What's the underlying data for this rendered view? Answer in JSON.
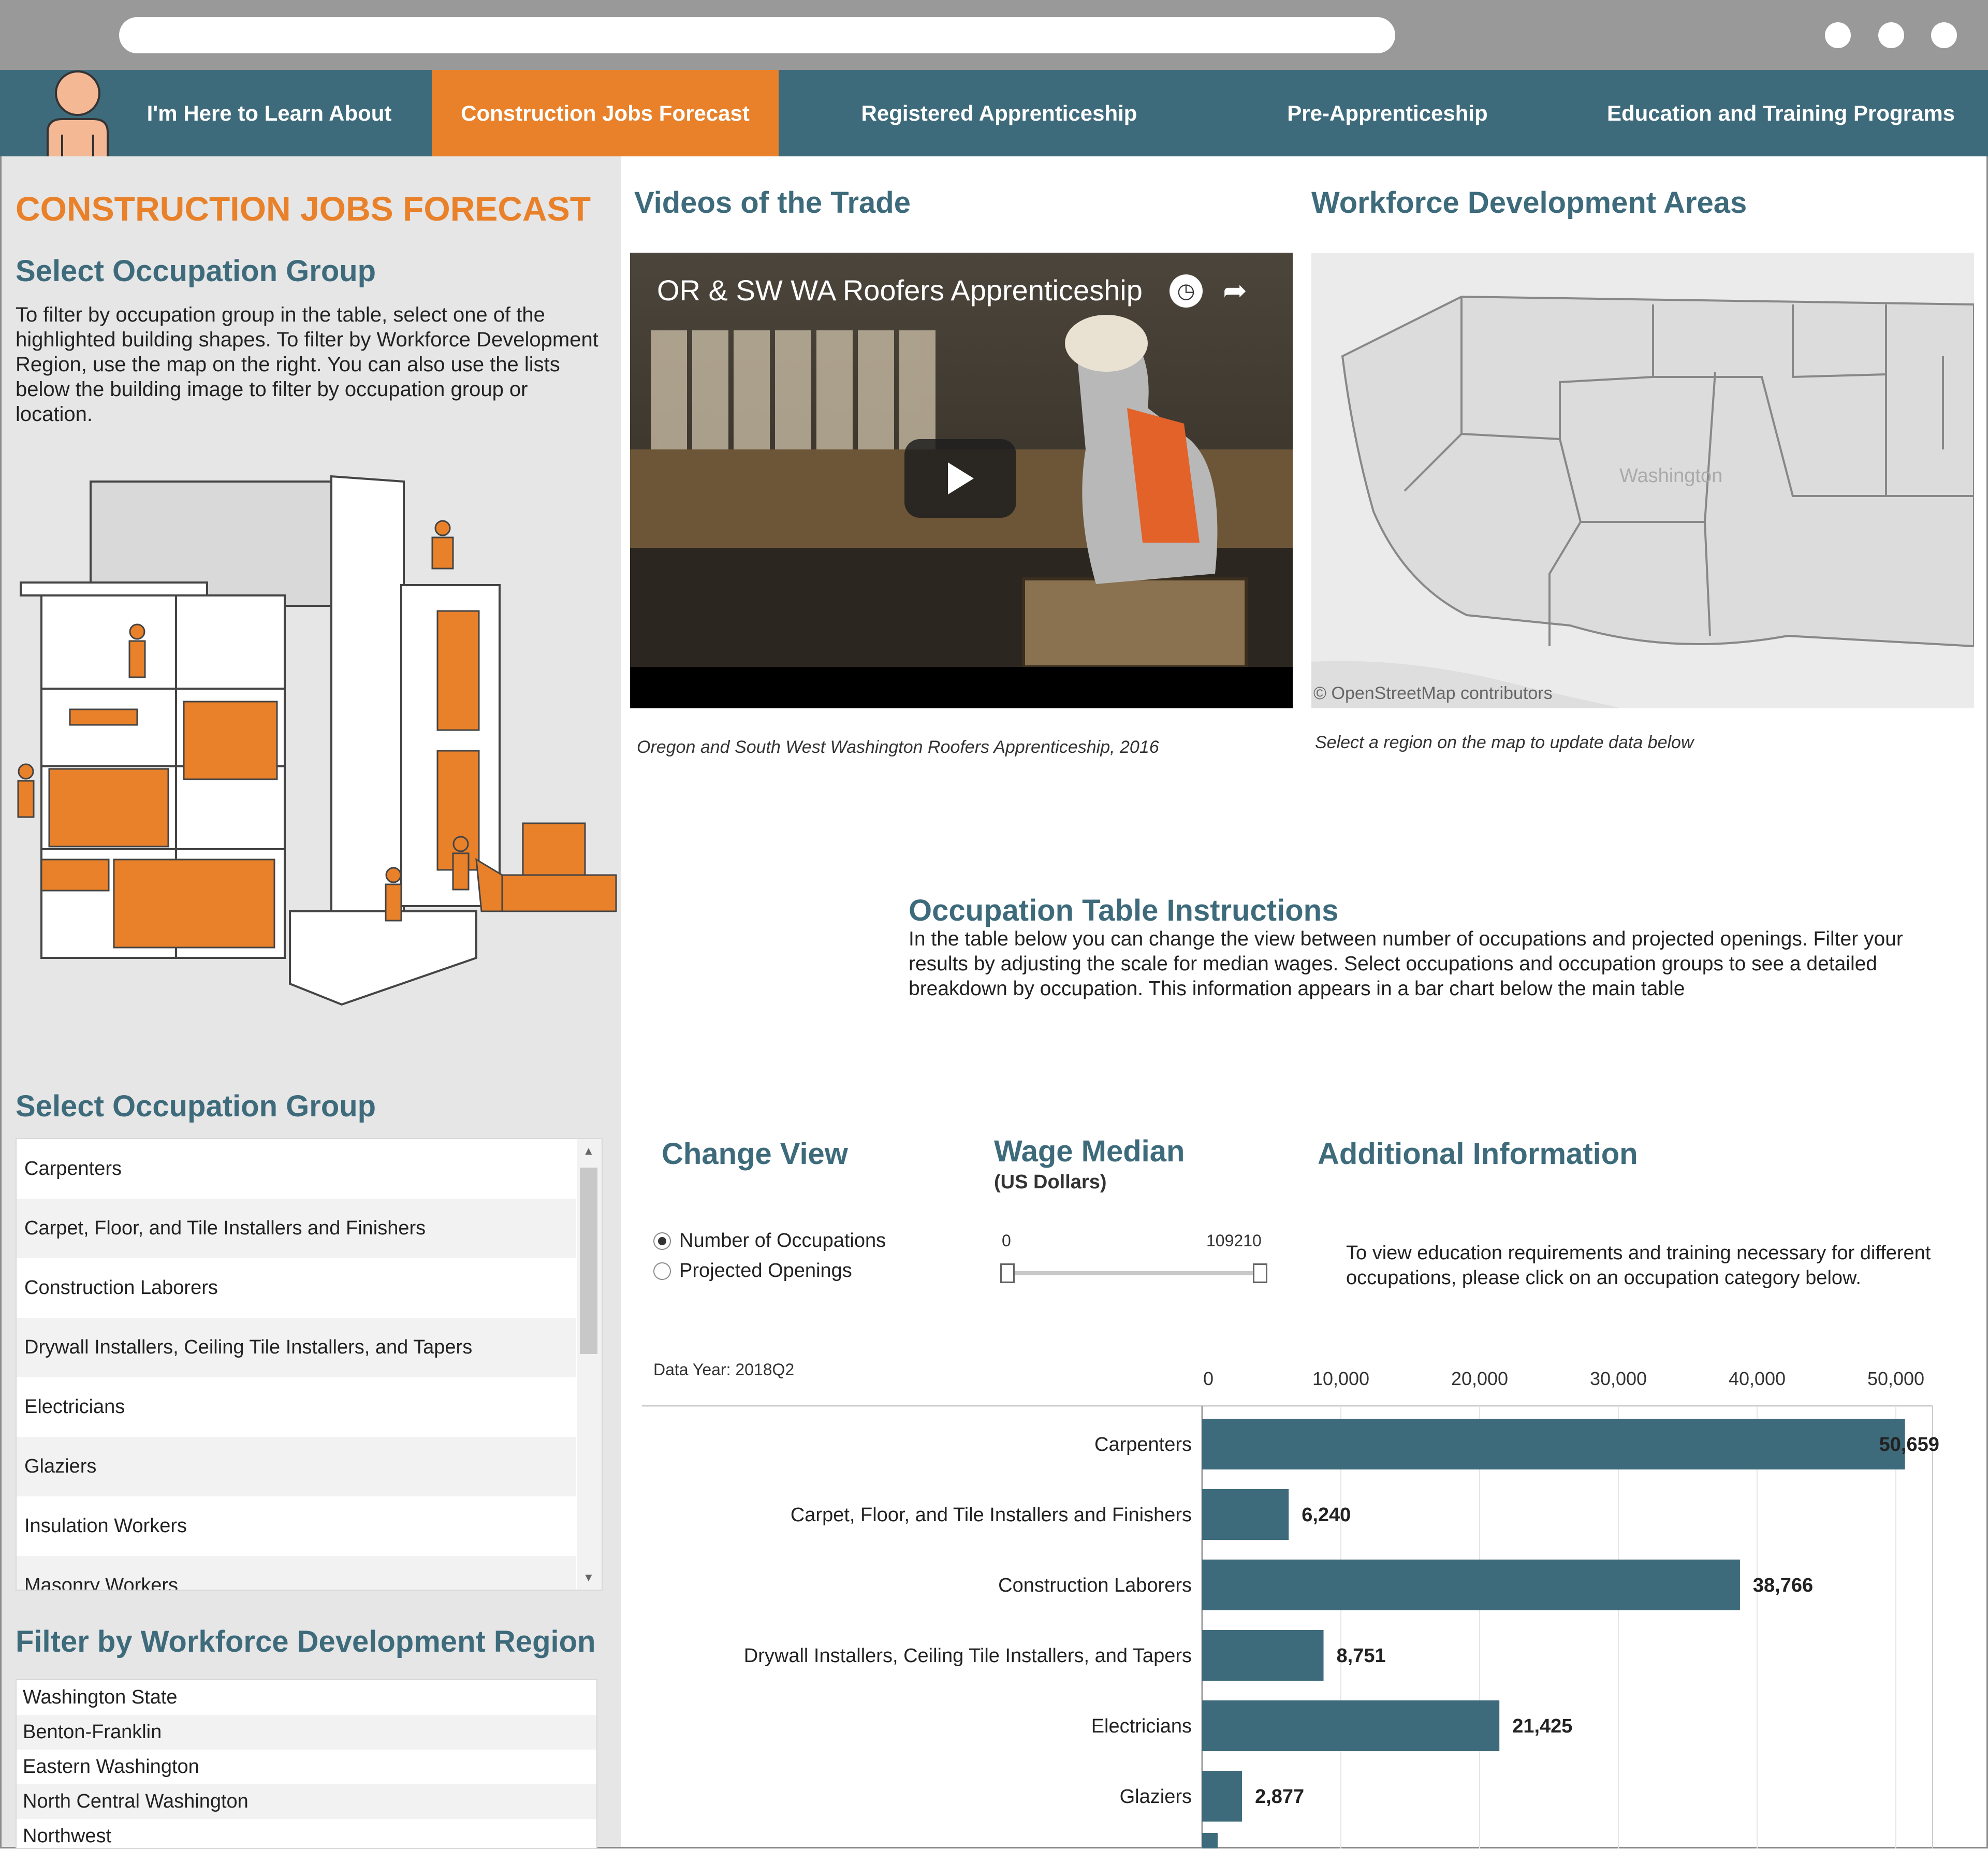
{
  "nav": {
    "items": [
      {
        "label": "I'm Here to Learn About",
        "active": false
      },
      {
        "label": "Construction Jobs Forecast",
        "active": true
      },
      {
        "label": "Registered Apprenticeship",
        "active": false
      },
      {
        "label": "Pre-Apprenticeship",
        "active": false
      },
      {
        "label": "Education and Training Programs",
        "active": false
      }
    ]
  },
  "left": {
    "title": "CONSTRUCTION JOBS FORECAST",
    "select_heading": "Select Occupation Group",
    "instructions": "To filter by occupation group in the table, select one of the highlighted building shapes. To filter by Workforce Development Region, use the map on the right. You can also use the lists below the building image to filter by occupation group or location.",
    "list_heading": "Select Occupation Group",
    "occupations": [
      "Carpenters",
      "Carpet, Floor, and Tile Installers and Finishers",
      "Construction Laborers",
      "Drywall Installers, Ceiling Tile Installers, and Tapers",
      "Electricians",
      "Glaziers",
      "Insulation Workers",
      "Masonry Workers"
    ],
    "region_heading": "Filter by Workforce Development Region",
    "regions": [
      "Washington State",
      "Benton-Franklin",
      "Eastern Washington",
      "North Central Washington",
      "Northwest"
    ]
  },
  "videos": {
    "heading": "Videos of the Trade",
    "video_title": "OR & SW WA Roofers Apprenticeship",
    "caption": "Oregon and South West Washington Roofers Apprenticeship, 2016"
  },
  "map": {
    "heading": "Workforce Development Areas",
    "state_label": "Washington",
    "attribution": "© OpenStreetMap contributors",
    "caption": "Select a region on the map to update data below"
  },
  "occ_table": {
    "heading": "Occupation Table Instructions",
    "text": "In the table below you can change the view between number of occupations and projected openings. Filter your results by adjusting the scale for median wages. Select occupations and occupation groups to see a detailed breakdown by occupation. This information appears in a bar chart below the main table"
  },
  "change_view": {
    "heading": "Change View",
    "options": [
      "Number of Occupations",
      "Projected Openings"
    ],
    "selected": "Number of Occupations"
  },
  "wage": {
    "heading": "Wage Median",
    "subheading": "(US Dollars)",
    "min": "0",
    "max": "109210"
  },
  "additional": {
    "heading": "Additional Information",
    "text": "To view education requirements and training necessary for different occupations, please click on an occupation category below."
  },
  "data_year": "Data Year: 2018Q2",
  "colors": {
    "teal": "#3e6b7b",
    "orange": "#e8812a",
    "bar": "#3e6b7b"
  },
  "chart_data": {
    "type": "bar",
    "orientation": "horizontal",
    "categories": [
      "Carpenters",
      "Carpet, Floor, and Tile Installers and Finishers",
      "Construction Laborers",
      "Drywall Installers, Ceiling Tile Installers, and Tapers",
      "Electricians",
      "Glaziers"
    ],
    "values": [
      50659,
      6240,
      38766,
      8751,
      21425,
      2877
    ],
    "value_labels": [
      "50,659",
      "6,240",
      "38,766",
      "8,751",
      "21,425",
      "2,877"
    ],
    "ticks": [
      "0",
      "10,000",
      "20,000",
      "30,000",
      "40,000",
      "50,000"
    ],
    "xlim": [
      0,
      52500
    ],
    "grid": true
  }
}
